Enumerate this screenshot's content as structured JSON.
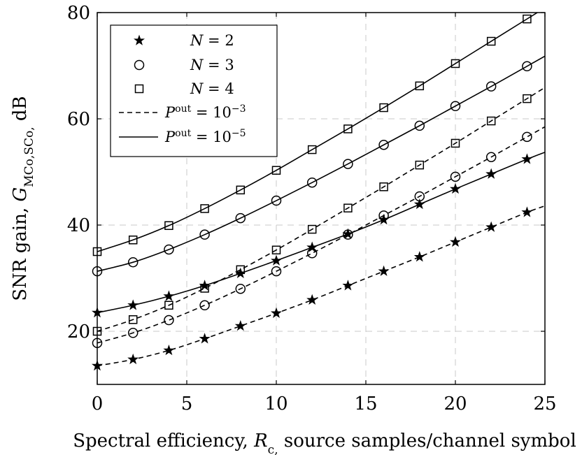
{
  "chart_data": {
    "type": "line",
    "xlabel": "Spectral efficiency, R_c, source samples/channel symbol",
    "ylabel": "SNR gain, G_MCo,SCo, dB",
    "xlim": [
      0,
      25
    ],
    "ylim": [
      10,
      80
    ],
    "xticks": [
      0,
      5,
      10,
      15,
      20,
      25
    ],
    "yticks": [
      20,
      40,
      60,
      80
    ],
    "grid": true,
    "legend_position": "top-left",
    "legend": [
      {
        "kind": "marker",
        "marker": "star",
        "label": "N = 2"
      },
      {
        "kind": "marker",
        "marker": "circle",
        "label": "N = 3"
      },
      {
        "kind": "marker",
        "marker": "square",
        "label": "N = 4"
      },
      {
        "kind": "line",
        "dash": "dashed",
        "label": "P^out = 10^-3"
      },
      {
        "kind": "line",
        "dash": "solid",
        "label": "P^out = 10^-5"
      }
    ],
    "series": [
      {
        "name": "N = 2, P^out = 10^-3",
        "marker": "star",
        "dash": "dashed",
        "x": [
          0,
          2,
          4,
          6,
          8,
          10,
          12,
          14,
          16,
          18,
          20,
          22,
          24,
          25
        ],
        "y": [
          13.5,
          14.7,
          16.4,
          18.6,
          21.0,
          23.4,
          25.9,
          28.6,
          31.3,
          34.0,
          36.8,
          39.6,
          42.4,
          43.6
        ],
        "marker_x": [
          0,
          2,
          4,
          6,
          8,
          10,
          12,
          14,
          16,
          18,
          20,
          22,
          24
        ]
      },
      {
        "name": "N = 2, P^out = 10^-5",
        "marker": "star",
        "dash": "solid",
        "x": [
          0,
          2,
          4,
          6,
          8,
          10,
          12,
          14,
          16,
          18,
          20,
          22,
          24,
          25
        ],
        "y": [
          23.5,
          24.9,
          26.6,
          28.6,
          30.9,
          33.3,
          35.8,
          38.3,
          41.0,
          43.9,
          46.8,
          49.6,
          52.4,
          53.7
        ],
        "marker_x": [
          0,
          2,
          4,
          6,
          8,
          10,
          12,
          14,
          16,
          18,
          20,
          22,
          24
        ]
      },
      {
        "name": "N = 3, P^out = 10^-3",
        "marker": "circle",
        "dash": "dashed",
        "x": [
          0,
          2,
          4,
          6,
          8,
          10,
          12,
          14,
          16,
          18,
          20,
          22,
          24,
          25
        ],
        "y": [
          17.8,
          19.7,
          22.1,
          24.9,
          28.0,
          31.3,
          34.7,
          38.2,
          41.8,
          45.4,
          49.1,
          52.8,
          56.6,
          58.5
        ],
        "marker_x": [
          0,
          2,
          4,
          6,
          8,
          10,
          12,
          14,
          16,
          18,
          20,
          22,
          24
        ]
      },
      {
        "name": "N = 3, P^out = 10^-5",
        "marker": "circle",
        "dash": "solid",
        "x": [
          0,
          2,
          4,
          6,
          8,
          10,
          12,
          14,
          16,
          18,
          20,
          22,
          24,
          25
        ],
        "y": [
          31.3,
          33.0,
          35.4,
          38.2,
          41.3,
          44.6,
          48.0,
          51.5,
          55.1,
          58.7,
          62.4,
          66.1,
          69.9,
          71.8
        ],
        "marker_x": [
          0,
          2,
          4,
          6,
          8,
          10,
          12,
          14,
          16,
          18,
          20,
          22,
          24
        ]
      },
      {
        "name": "N = 4, P^out = 10^-3",
        "marker": "square",
        "dash": "dashed",
        "x": [
          0,
          2,
          4,
          6,
          8,
          10,
          12,
          14,
          16,
          18,
          20,
          22,
          24,
          25
        ],
        "y": [
          20.0,
          22.2,
          24.9,
          28.1,
          31.6,
          35.3,
          39.2,
          43.2,
          47.2,
          51.3,
          55.4,
          59.6,
          63.8,
          65.9
        ],
        "marker_x": [
          0,
          2,
          4,
          6,
          8,
          10,
          12,
          14,
          16,
          18,
          20,
          22,
          24
        ]
      },
      {
        "name": "N = 4, P^out = 10^-5",
        "marker": "square",
        "dash": "solid",
        "x": [
          0,
          2,
          4,
          6,
          8,
          10,
          12,
          14,
          16,
          18,
          20,
          22,
          24,
          25
        ],
        "y": [
          35.0,
          37.2,
          39.9,
          43.1,
          46.6,
          50.3,
          54.2,
          58.1,
          62.1,
          66.2,
          70.4,
          74.6,
          78.8,
          80.9
        ],
        "marker_x": [
          0,
          2,
          4,
          6,
          8,
          10,
          12,
          14,
          16,
          18,
          20,
          22,
          24
        ]
      }
    ]
  }
}
